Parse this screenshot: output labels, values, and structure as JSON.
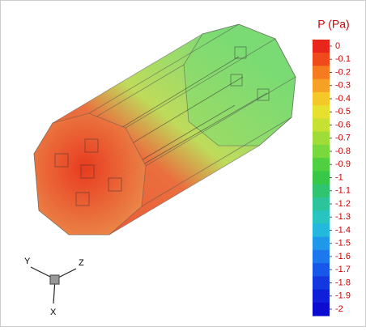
{
  "chart_data": {
    "type": "contour3d",
    "colorbar_title": "P (Pa)",
    "cticks": [
      0,
      -0.1,
      -0.2,
      -0.3,
      -0.4,
      -0.5,
      -0.6,
      -0.7,
      -0.8,
      -0.9,
      -1,
      -1.1,
      -1.2,
      -1.3,
      -1.4,
      -1.5,
      -1.6,
      -1.7,
      -1.8,
      -1.9,
      -2
    ],
    "clim": [
      -2,
      0
    ],
    "colors": [
      "#e8261c",
      "#f04a1c",
      "#f57a20",
      "#f7a026",
      "#f5c82a",
      "#e6e02e",
      "#c6e034",
      "#a0dc38",
      "#78d83c",
      "#50d040",
      "#38c848",
      "#30c470",
      "#2cc49a",
      "#28c4c0",
      "#24b8dc",
      "#2098ea",
      "#1c78ec",
      "#1858e8",
      "#1438e0",
      "#1020d8",
      "#0c0cd0"
    ],
    "axes_labels": {
      "y": "Y",
      "z": "Z",
      "x": "X"
    }
  }
}
